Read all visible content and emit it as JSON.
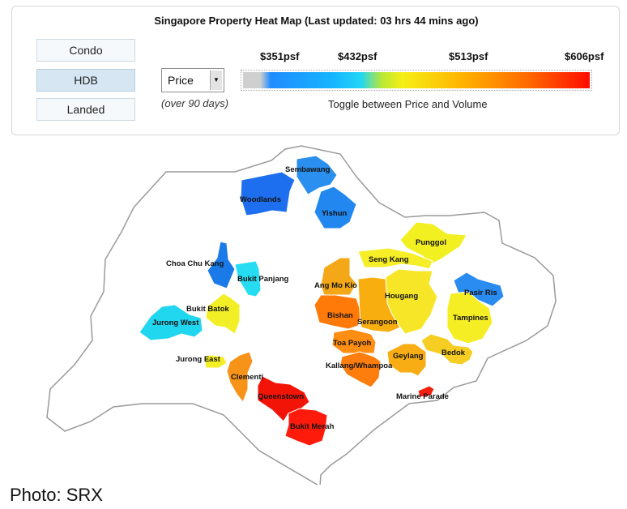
{
  "header": {
    "title": "Singapore Property Heat Map (Last updated: 03 hrs 44 mins ago)"
  },
  "property_types": [
    {
      "label": "Condo",
      "active": false
    },
    {
      "label": "HDB",
      "active": true
    },
    {
      "label": "Landed",
      "active": false
    }
  ],
  "metric_select": {
    "value": "Price",
    "note": "(over 90 days)"
  },
  "legend": {
    "ticks": [
      "$351psf",
      "$432psf",
      "$513psf",
      "$606psf"
    ],
    "toggle_text": "Toggle between Price and Volume",
    "colors": [
      "#cfcfcf",
      "#1f8cff",
      "#16b5ff",
      "#22d6f5",
      "#f6ef16",
      "#ffb400",
      "#ff6a00",
      "#ff0d00"
    ]
  },
  "map": {
    "regions": [
      {
        "name": "Sembawang",
        "color": "#2a8fee"
      },
      {
        "name": "Woodlands",
        "color": "#1e6ff0"
      },
      {
        "name": "Yishun",
        "color": "#2287ef"
      },
      {
        "name": "Punggol",
        "color": "#f3f022"
      },
      {
        "name": "Seng Kang",
        "color": "#f6ee26"
      },
      {
        "name": "Choa Chu Kang",
        "color": "#1a7ae8"
      },
      {
        "name": "Bukit Panjang",
        "color": "#26dcf2"
      },
      {
        "name": "Ang Mo Kio",
        "color": "#f4a817"
      },
      {
        "name": "Hougang",
        "color": "#f7e628"
      },
      {
        "name": "Pasir Ris",
        "color": "#2a8bf0"
      },
      {
        "name": "Bukit Batok",
        "color": "#f3ef26"
      },
      {
        "name": "Tampines",
        "color": "#f6ee25"
      },
      {
        "name": "Jurong West",
        "color": "#21d6ef"
      },
      {
        "name": "Bishan",
        "color": "#ff7a08"
      },
      {
        "name": "Serangoon",
        "color": "#f9ae10"
      },
      {
        "name": "Toa Payoh",
        "color": "#ff8e12"
      },
      {
        "name": "Bedok",
        "color": "#f6cd22"
      },
      {
        "name": "Geylang",
        "color": "#f8ad14"
      },
      {
        "name": "Jurong East",
        "color": "#f4ef24"
      },
      {
        "name": "Kallang/Whampoa",
        "color": "#fd7e0c"
      },
      {
        "name": "Clementi",
        "color": "#f79318"
      },
      {
        "name": "Queenstown",
        "color": "#f31408"
      },
      {
        "name": "Marine Parade",
        "color": "#f2200e"
      },
      {
        "name": "Bukit Merah",
        "color": "#ff1b0c"
      }
    ]
  },
  "credit": "Photo: SRX"
}
